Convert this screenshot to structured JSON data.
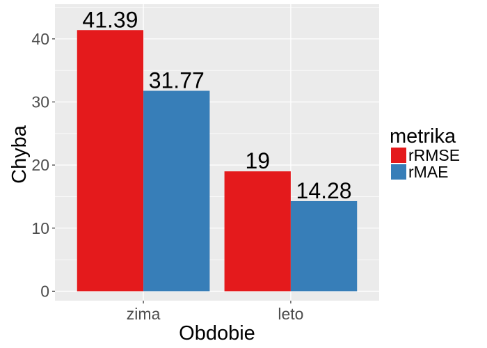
{
  "chart_data": {
    "type": "bar",
    "categories": [
      "zima",
      "leto"
    ],
    "series": [
      {
        "name": "rRMSE",
        "values": [
          41.39,
          19
        ],
        "labels": [
          "41.39",
          "19"
        ],
        "color": "#E41A1C"
      },
      {
        "name": "rMAE",
        "values": [
          31.77,
          14.28
        ],
        "labels": [
          "31.77",
          "14.28"
        ],
        "color": "#377EB8"
      }
    ],
    "xlabel": "Obdobie",
    "ylabel": "Chyba",
    "ylim": [
      -1.5,
      45.5
    ],
    "yticks": [
      0,
      10,
      20,
      30,
      40
    ],
    "grid": true,
    "panel_background": "#EBEBEB",
    "grid_color": "#FFFFFF",
    "legend": {
      "title": "metrika",
      "position": "right"
    }
  }
}
